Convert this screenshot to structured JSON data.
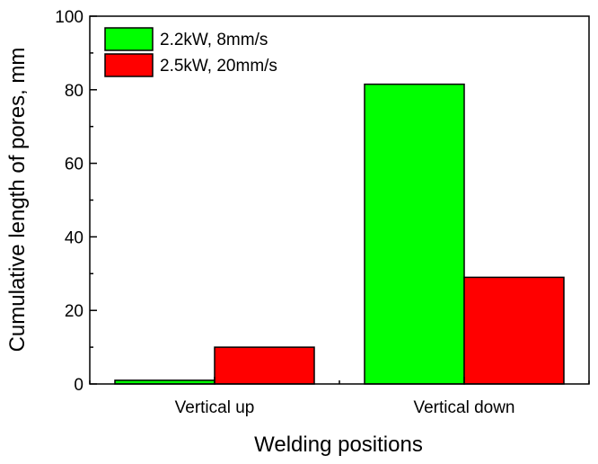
{
  "chart_data": {
    "type": "bar",
    "categories": [
      "Vertical up",
      "Vertical down"
    ],
    "series": [
      {
        "name": "2.2kW, 8mm/s",
        "values": [
          1,
          81.5
        ],
        "color": "#00ff00"
      },
      {
        "name": "2.5kW, 20mm/s",
        "values": [
          10,
          29
        ],
        "color": "#ff0000"
      }
    ],
    "xlabel": "Welding positions",
    "ylabel": "Cumulative length of pores, mm",
    "ylim": [
      0,
      100
    ],
    "yticks": [
      0,
      20,
      40,
      60,
      80,
      100
    ],
    "grid": false,
    "legend_position": "top-left"
  }
}
